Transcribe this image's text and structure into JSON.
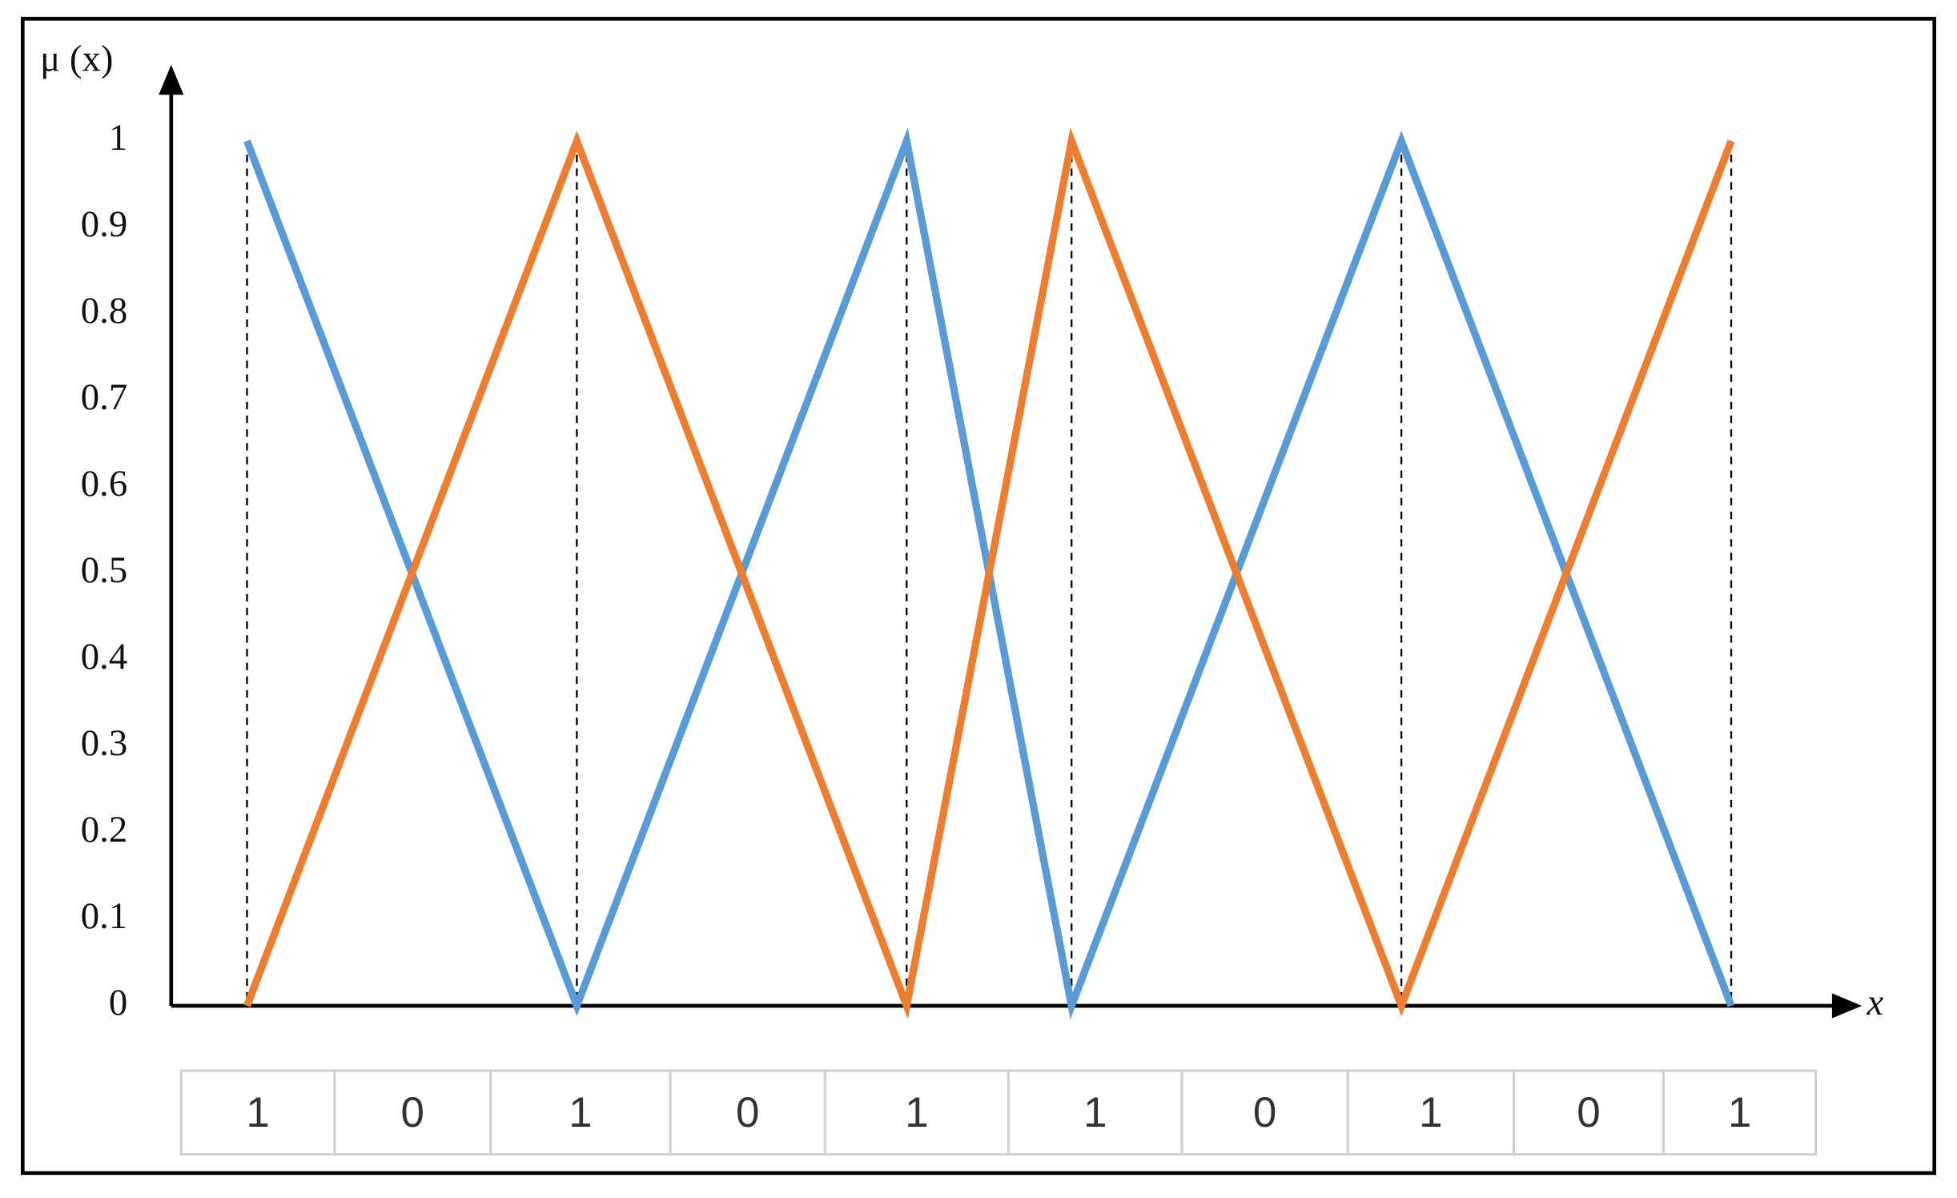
{
  "chart_data": {
    "type": "line",
    "y_label": "μ (x)",
    "x_label": "x",
    "x": [
      0,
      1,
      2,
      2.5,
      3.5,
      4.5
    ],
    "series": [
      {
        "color": "#5b9bd5",
        "values": [
          1,
          0,
          1,
          0,
          1,
          0
        ]
      },
      {
        "color": "#ed7d31",
        "values": [
          0,
          1,
          0,
          1,
          0,
          1
        ]
      }
    ],
    "xlim": [
      -0.23,
      4.87
    ],
    "ylim": [
      0,
      1.08
    ],
    "yticks": [
      0,
      0.1,
      0.2,
      0.3,
      0.4,
      0.5,
      0.6,
      0.7,
      0.8,
      0.9,
      1
    ],
    "bits": [
      1,
      0,
      1,
      0,
      1,
      1,
      0,
      1,
      0,
      1
    ]
  }
}
